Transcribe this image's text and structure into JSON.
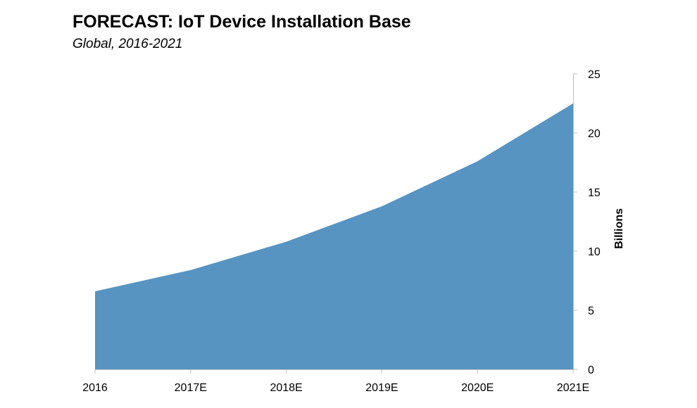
{
  "chart_data": {
    "type": "area",
    "title": "FORECAST: IoT Device Installation Base",
    "subtitle": "Global, 2016-2021",
    "categories": [
      "2016",
      "2017E",
      "2018E",
      "2019E",
      "2020E",
      "2021E"
    ],
    "series": [
      {
        "values": [
          6.6,
          8.4,
          10.8,
          13.8,
          17.6,
          22.5
        ]
      }
    ],
    "xlabel": "",
    "ylabel": "Billions",
    "ylim": [
      0,
      25
    ],
    "yticks": [
      0,
      5,
      10,
      15,
      20,
      25
    ],
    "y_axis_position": "right",
    "grid": false,
    "legend": "none",
    "colors": {
      "area": "#5794c2",
      "axis": "#bfbfbf"
    }
  }
}
